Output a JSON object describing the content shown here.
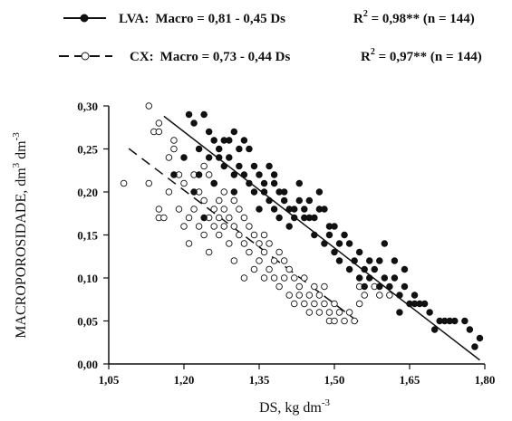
{
  "chart_data": {
    "type": "scatter",
    "xlabel": "DS, kg dm",
    "xlabel_sup": "-3",
    "ylabel": "MACROPOROSIDADE, dm",
    "ylabel_sup1": "3",
    "ylabel_mid": " dm",
    "ylabel_sup2": "-3",
    "xlim": [
      1.05,
      1.8
    ],
    "ylim": [
      0.0,
      0.3
    ],
    "x_ticks": [
      "1,05",
      "1,20",
      "1,35",
      "1,50",
      "1,65",
      "1,80"
    ],
    "y_ticks": [
      "0,00",
      "0,05",
      "0,10",
      "0,15",
      "0,20",
      "0,25",
      "0,30"
    ],
    "legend_position": "top",
    "series": [
      {
        "name": "LVA",
        "marker": "filled-circle",
        "line_style": "solid",
        "color": "#111111",
        "legend": {
          "label": "LVA:",
          "equation": "Macro = 0,81 - 0,45 Ds",
          "r2_label": "R",
          "r2_sup": "2",
          "r2_value": " = 0,98** (n = 144)"
        },
        "fit": {
          "intercept": 0.81,
          "slope": -0.45,
          "x_range": [
            1.16,
            1.79
          ]
        },
        "points": [
          [
            1.18,
            0.22
          ],
          [
            1.2,
            0.24
          ],
          [
            1.21,
            0.29
          ],
          [
            1.22,
            0.28
          ],
          [
            1.22,
            0.2
          ],
          [
            1.23,
            0.25
          ],
          [
            1.23,
            0.22
          ],
          [
            1.24,
            0.29
          ],
          [
            1.24,
            0.17
          ],
          [
            1.25,
            0.27
          ],
          [
            1.25,
            0.24
          ],
          [
            1.26,
            0.26
          ],
          [
            1.26,
            0.21
          ],
          [
            1.27,
            0.25
          ],
          [
            1.27,
            0.24
          ],
          [
            1.28,
            0.26
          ],
          [
            1.28,
            0.23
          ],
          [
            1.29,
            0.26
          ],
          [
            1.29,
            0.24
          ],
          [
            1.3,
            0.27
          ],
          [
            1.3,
            0.22
          ],
          [
            1.3,
            0.2
          ],
          [
            1.31,
            0.25
          ],
          [
            1.31,
            0.23
          ],
          [
            1.32,
            0.26
          ],
          [
            1.32,
            0.22
          ],
          [
            1.33,
            0.25
          ],
          [
            1.33,
            0.21
          ],
          [
            1.34,
            0.2
          ],
          [
            1.34,
            0.23
          ],
          [
            1.35,
            0.22
          ],
          [
            1.35,
            0.18
          ],
          [
            1.36,
            0.21
          ],
          [
            1.36,
            0.2
          ],
          [
            1.37,
            0.23
          ],
          [
            1.37,
            0.19
          ],
          [
            1.38,
            0.22
          ],
          [
            1.38,
            0.21
          ],
          [
            1.38,
            0.18
          ],
          [
            1.39,
            0.2
          ],
          [
            1.39,
            0.17
          ],
          [
            1.4,
            0.2
          ],
          [
            1.4,
            0.19
          ],
          [
            1.41,
            0.18
          ],
          [
            1.41,
            0.16
          ],
          [
            1.42,
            0.18
          ],
          [
            1.42,
            0.17
          ],
          [
            1.43,
            0.21
          ],
          [
            1.43,
            0.19
          ],
          [
            1.44,
            0.17
          ],
          [
            1.44,
            0.18
          ],
          [
            1.45,
            0.17
          ],
          [
            1.45,
            0.19
          ],
          [
            1.46,
            0.17
          ],
          [
            1.46,
            0.15
          ],
          [
            1.47,
            0.18
          ],
          [
            1.47,
            0.2
          ],
          [
            1.48,
            0.14
          ],
          [
            1.48,
            0.18
          ],
          [
            1.49,
            0.15
          ],
          [
            1.49,
            0.16
          ],
          [
            1.5,
            0.13
          ],
          [
            1.5,
            0.16
          ],
          [
            1.51,
            0.12
          ],
          [
            1.51,
            0.14
          ],
          [
            1.52,
            0.15
          ],
          [
            1.53,
            0.11
          ],
          [
            1.53,
            0.14
          ],
          [
            1.54,
            0.12
          ],
          [
            1.55,
            0.1
          ],
          [
            1.55,
            0.13
          ],
          [
            1.56,
            0.11
          ],
          [
            1.56,
            0.09
          ],
          [
            1.57,
            0.12
          ],
          [
            1.57,
            0.1
          ],
          [
            1.58,
            0.11
          ],
          [
            1.59,
            0.09
          ],
          [
            1.59,
            0.12
          ],
          [
            1.6,
            0.1
          ],
          [
            1.6,
            0.14
          ],
          [
            1.61,
            0.09
          ],
          [
            1.62,
            0.1
          ],
          [
            1.62,
            0.12
          ],
          [
            1.63,
            0.08
          ],
          [
            1.63,
            0.06
          ],
          [
            1.64,
            0.09
          ],
          [
            1.64,
            0.11
          ],
          [
            1.65,
            0.07
          ],
          [
            1.66,
            0.08
          ],
          [
            1.66,
            0.07
          ],
          [
            1.67,
            0.07
          ],
          [
            1.68,
            0.07
          ],
          [
            1.69,
            0.06
          ],
          [
            1.7,
            0.04
          ],
          [
            1.71,
            0.05
          ],
          [
            1.72,
            0.05
          ],
          [
            1.73,
            0.05
          ],
          [
            1.74,
            0.05
          ],
          [
            1.76,
            0.05
          ],
          [
            1.77,
            0.04
          ],
          [
            1.78,
            0.02
          ],
          [
            1.79,
            0.03
          ]
        ]
      },
      {
        "name": "CX",
        "marker": "open-circle",
        "line_style": "dashed",
        "color": "#111111",
        "legend": {
          "label": "CX:",
          "equation": "Macro = 0,73 - 0,44 Ds",
          "r2_label": "R",
          "r2_sup": "2",
          "r2_value": " = 0,97** (n = 144)"
        },
        "fit": {
          "intercept": 0.73,
          "slope": -0.44,
          "x_range": [
            1.09,
            1.55
          ]
        },
        "points": [
          [
            1.08,
            0.21
          ],
          [
            1.13,
            0.3
          ],
          [
            1.13,
            0.21
          ],
          [
            1.14,
            0.27
          ],
          [
            1.15,
            0.28
          ],
          [
            1.15,
            0.27
          ],
          [
            1.15,
            0.18
          ],
          [
            1.15,
            0.17
          ],
          [
            1.16,
            0.17
          ],
          [
            1.17,
            0.24
          ],
          [
            1.17,
            0.2
          ],
          [
            1.18,
            0.26
          ],
          [
            1.18,
            0.25
          ],
          [
            1.19,
            0.22
          ],
          [
            1.19,
            0.18
          ],
          [
            1.2,
            0.21
          ],
          [
            1.2,
            0.16
          ],
          [
            1.21,
            0.17
          ],
          [
            1.21,
            0.14
          ],
          [
            1.22,
            0.22
          ],
          [
            1.22,
            0.18
          ],
          [
            1.23,
            0.2
          ],
          [
            1.23,
            0.16
          ],
          [
            1.24,
            0.23
          ],
          [
            1.24,
            0.19
          ],
          [
            1.24,
            0.15
          ],
          [
            1.25,
            0.22
          ],
          [
            1.25,
            0.17
          ],
          [
            1.25,
            0.13
          ],
          [
            1.26,
            0.21
          ],
          [
            1.26,
            0.18
          ],
          [
            1.26,
            0.16
          ],
          [
            1.27,
            0.19
          ],
          [
            1.27,
            0.17
          ],
          [
            1.27,
            0.15
          ],
          [
            1.28,
            0.2
          ],
          [
            1.28,
            0.18
          ],
          [
            1.28,
            0.16
          ],
          [
            1.29,
            0.17
          ],
          [
            1.29,
            0.14
          ],
          [
            1.3,
            0.19
          ],
          [
            1.3,
            0.16
          ],
          [
            1.3,
            0.12
          ],
          [
            1.31,
            0.18
          ],
          [
            1.31,
            0.15
          ],
          [
            1.32,
            0.17
          ],
          [
            1.32,
            0.14
          ],
          [
            1.32,
            0.1
          ],
          [
            1.33,
            0.16
          ],
          [
            1.33,
            0.13
          ],
          [
            1.34,
            0.15
          ],
          [
            1.34,
            0.11
          ],
          [
            1.35,
            0.14
          ],
          [
            1.35,
            0.12
          ],
          [
            1.36,
            0.15
          ],
          [
            1.36,
            0.13
          ],
          [
            1.36,
            0.1
          ],
          [
            1.37,
            0.14
          ],
          [
            1.37,
            0.11
          ],
          [
            1.38,
            0.12
          ],
          [
            1.38,
            0.1
          ],
          [
            1.39,
            0.13
          ],
          [
            1.39,
            0.09
          ],
          [
            1.4,
            0.12
          ],
          [
            1.4,
            0.1
          ],
          [
            1.41,
            0.11
          ],
          [
            1.41,
            0.08
          ],
          [
            1.42,
            0.1
          ],
          [
            1.42,
            0.07
          ],
          [
            1.43,
            0.09
          ],
          [
            1.43,
            0.08
          ],
          [
            1.44,
            0.1
          ],
          [
            1.44,
            0.07
          ],
          [
            1.45,
            0.08
          ],
          [
            1.45,
            0.06
          ],
          [
            1.46,
            0.09
          ],
          [
            1.46,
            0.07
          ],
          [
            1.47,
            0.08
          ],
          [
            1.47,
            0.06
          ],
          [
            1.48,
            0.07
          ],
          [
            1.48,
            0.09
          ],
          [
            1.49,
            0.06
          ],
          [
            1.49,
            0.05
          ],
          [
            1.5,
            0.07
          ],
          [
            1.5,
            0.05
          ],
          [
            1.51,
            0.06
          ],
          [
            1.52,
            0.05
          ],
          [
            1.53,
            0.06
          ],
          [
            1.54,
            0.05
          ],
          [
            1.55,
            0.07
          ],
          [
            1.55,
            0.09
          ],
          [
            1.56,
            0.08
          ],
          [
            1.58,
            0.09
          ],
          [
            1.59,
            0.08
          ],
          [
            1.61,
            0.08
          ]
        ]
      }
    ]
  }
}
